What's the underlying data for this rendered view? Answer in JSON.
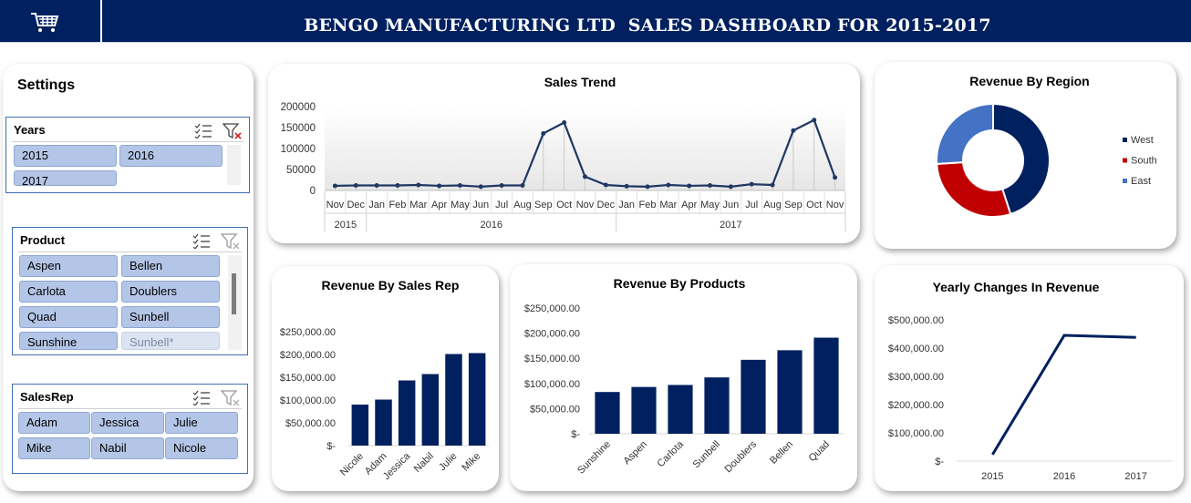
{
  "header": {
    "title": "BENGO MANUFACTURING LTD  SALES DASHBOARD FOR 2015-2017",
    "icon": "shopping-cart-icon",
    "colors": {
      "navy": "#002060",
      "accent": "#4472c4"
    }
  },
  "settings": {
    "title": "Settings",
    "slicers": {
      "years": {
        "title": "Years",
        "items": [
          "2015",
          "2016",
          "2017"
        ]
      },
      "product": {
        "title": "Product",
        "items": [
          "Aspen",
          "Bellen",
          "Carlota",
          "Doublers",
          "Quad",
          "Sunbell",
          "Sunshine",
          "Sunbell*"
        ]
      },
      "salesrep": {
        "title": "SalesRep",
        "items": [
          "Adam",
          "Jessica",
          "Julie",
          "Mike",
          "Nabil",
          "Nicole"
        ]
      }
    }
  },
  "chart_data": [
    {
      "id": "sales-trend",
      "type": "line",
      "title": "Sales Trend",
      "categories": [
        "Nov",
        "Dec",
        "Jan",
        "Feb",
        "Mar",
        "Apr",
        "May",
        "Jun",
        "Jul",
        "Aug",
        "Sep",
        "Oct",
        "Nov",
        "Dec",
        "Jan",
        "Feb",
        "Mar",
        "Apr",
        "May",
        "Jun",
        "Jul",
        "Aug",
        "Sep",
        "Oct",
        "Nov"
      ],
      "groups": [
        {
          "label": "2015",
          "count": 2
        },
        {
          "label": "2016",
          "count": 12
        },
        {
          "label": "2017",
          "count": 11
        }
      ],
      "values": [
        11000,
        12000,
        12000,
        12000,
        13000,
        11000,
        12000,
        9000,
        12000,
        12000,
        136000,
        162000,
        33000,
        13000,
        10000,
        9000,
        13000,
        11000,
        12000,
        9000,
        15000,
        13000,
        143000,
        168000,
        31000
      ],
      "yticks": [
        0,
        50000,
        100000,
        150000,
        200000
      ],
      "ylim": [
        0,
        200000
      ],
      "ytick_labels": [
        "0",
        "50000",
        "100000",
        "150000",
        "200000"
      ],
      "color": "#1f3864"
    },
    {
      "id": "revenue-by-region",
      "type": "pie",
      "title": "Revenue By Region",
      "labels": [
        "West",
        "South",
        "East"
      ],
      "values": [
        45,
        29,
        26
      ],
      "colors": [
        "#002060",
        "#c00000",
        "#4472c4"
      ]
    },
    {
      "id": "revenue-by-sales-rep",
      "type": "bar",
      "title": "Revenue By Sales Rep",
      "categories": [
        "Nicole",
        "Adam",
        "Jessica",
        "Nabil",
        "Julie",
        "Mike"
      ],
      "values": [
        90000,
        101000,
        143000,
        157000,
        201000,
        203000
      ],
      "yticks": [
        0,
        50000,
        100000,
        150000,
        200000,
        250000
      ],
      "ytick_labels": [
        "$-",
        "$50,000.00",
        "$100,000.00",
        "$150,000.00",
        "$200,000.00",
        "$250,000.00"
      ],
      "ylim": [
        0,
        250000
      ],
      "color": "#002060"
    },
    {
      "id": "revenue-by-products",
      "type": "bar",
      "title": "Revenue By Products",
      "categories": [
        "Sunshine",
        "Aspen",
        "Carlota",
        "Sunbell",
        "Doublers",
        "Bellen",
        "Quad"
      ],
      "values": [
        83000,
        93000,
        97000,
        112000,
        147000,
        166000,
        191000
      ],
      "yticks": [
        0,
        50000,
        100000,
        150000,
        200000,
        250000
      ],
      "ytick_labels": [
        "$-",
        "$50,000.00",
        "$100,000.00",
        "$150,000.00",
        "$200,000.00",
        "$250,000.00"
      ],
      "ylim": [
        0,
        250000
      ],
      "color": "#002060"
    },
    {
      "id": "yearly-changes",
      "type": "line",
      "title": "Yearly Changes In Revenue",
      "categories": [
        "2015",
        "2016",
        "2017"
      ],
      "values": [
        23000,
        445000,
        438000
      ],
      "yticks": [
        0,
        100000,
        200000,
        300000,
        400000,
        500000
      ],
      "ytick_labels": [
        "$-",
        "$100,000.00",
        "$200,000.00",
        "$300,000.00",
        "$400,000.00",
        "$500,000.00"
      ],
      "ylim": [
        0,
        500000
      ],
      "color": "#002060"
    }
  ]
}
